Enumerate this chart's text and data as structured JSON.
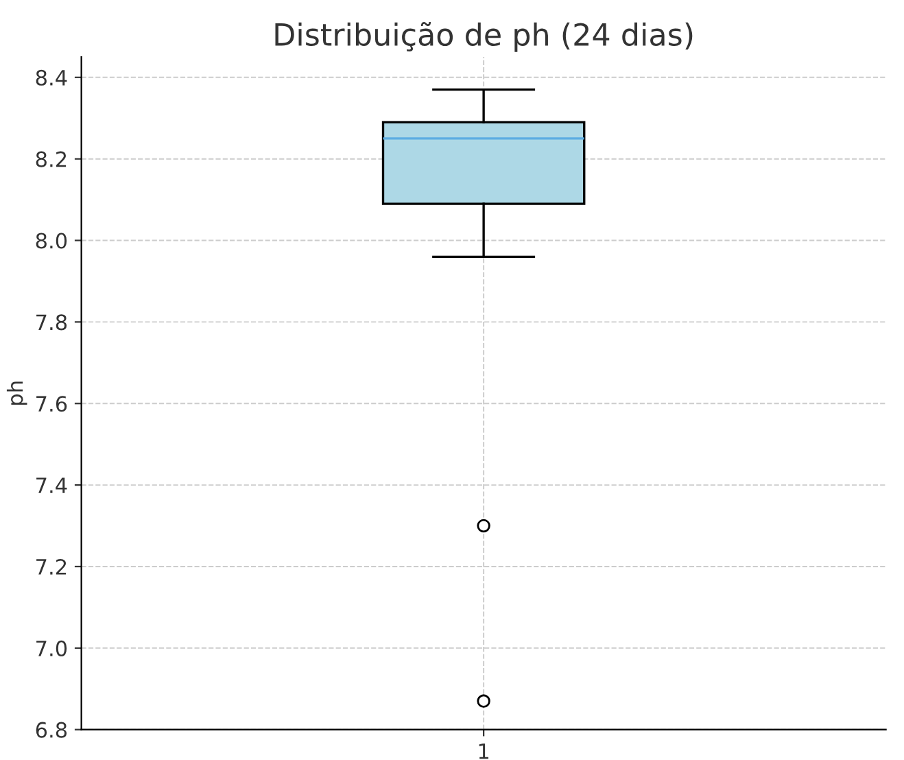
{
  "chart_data": {
    "type": "box",
    "title": "Distribuição de ph (24 dias)",
    "ylabel": "ph",
    "categories": [
      "1"
    ],
    "boxes": [
      {
        "low": 7.96,
        "q1": 8.09,
        "median": 8.25,
        "q3": 8.29,
        "high": 8.37,
        "outliers": [
          7.3,
          6.87
        ]
      }
    ],
    "color": "#add8e6",
    "ylim": [
      6.8,
      8.45
    ],
    "yticks": [
      6.8,
      {
        "value": 7.0,
        "label": "7.0"
      },
      7.2,
      7.4,
      7.6,
      7.8,
      {
        "value": 8.0,
        "label": "8.0"
      },
      8.2,
      8.4
    ],
    "grid": true
  }
}
